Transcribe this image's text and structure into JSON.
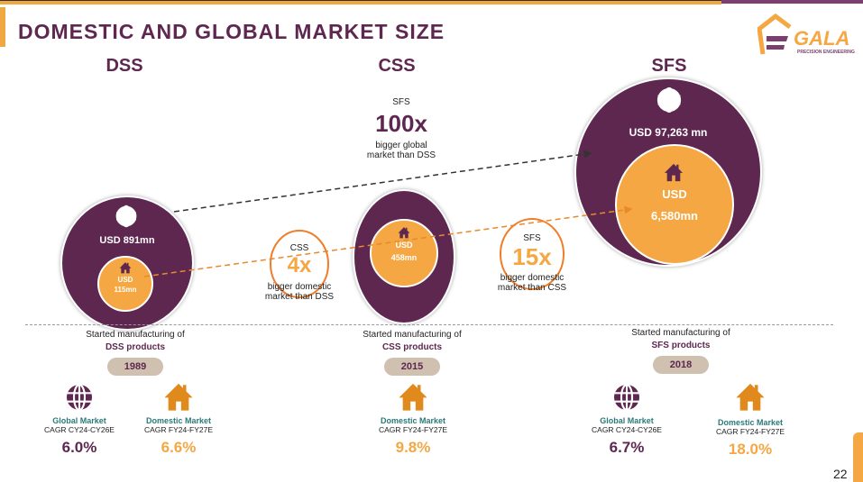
{
  "title": "DOMESTIC AND GLOBAL MARKET SIZE",
  "logo": {
    "name": "GALA",
    "tagline": "PRECISION ENGINEERING"
  },
  "colors": {
    "purple": "#5e2750",
    "orange": "#f4a742",
    "teal": "#2b7a78",
    "callout_ring": "#f07d2a"
  },
  "columns": [
    {
      "header": "DSS",
      "global": "USD 891mn",
      "domestic_l1": "USD",
      "domestic_l2": "115mn",
      "started": "Started manufacturing of",
      "product": "DSS products",
      "year": "1989",
      "metrics": [
        {
          "label": "Global Market",
          "cagr": "CAGR CY24-CY26E",
          "value": "6.0%",
          "icon": "globe-icon"
        },
        {
          "label": "Domestic Market",
          "cagr": "CAGR FY24-FY27E",
          "value": "6.6%",
          "icon": "house-icon"
        }
      ]
    },
    {
      "header": "CSS",
      "global": "",
      "domestic_l1": "USD",
      "domestic_l2": "458mn",
      "started": "Started manufacturing of",
      "product": "CSS products",
      "year": "2015",
      "metrics": [
        {
          "label": "Domestic Market",
          "cagr": "CAGR FY24-FY27E",
          "value": "9.8%",
          "icon": "house-icon"
        }
      ]
    },
    {
      "header": "SFS",
      "global": "USD 97,263 mn",
      "domestic_l1": "USD",
      "domestic_l2": "6,580mn",
      "started": "Started manufacturing of",
      "product": "SFS products",
      "year": "2018",
      "metrics": [
        {
          "label": "Global Market",
          "cagr": "CAGR CY24-CY26E",
          "value": "6.7%",
          "icon": "globe-icon"
        },
        {
          "label": "Domestic Market",
          "cagr": "CAGR FY24-FY27E",
          "value": "18.0%",
          "icon": "house-icon"
        }
      ]
    }
  ],
  "callouts": [
    {
      "subject": "SFS",
      "multiple": "100x",
      "l1": "bigger global",
      "l2": "market than DSS"
    },
    {
      "subject": "CSS",
      "multiple": "4x",
      "l1": "bigger domestic",
      "l2": "market than DSS"
    },
    {
      "subject": "SFS",
      "multiple": "15x",
      "l1": "bigger domestic",
      "l2": "market than CSS"
    }
  ],
  "page_number": "22"
}
